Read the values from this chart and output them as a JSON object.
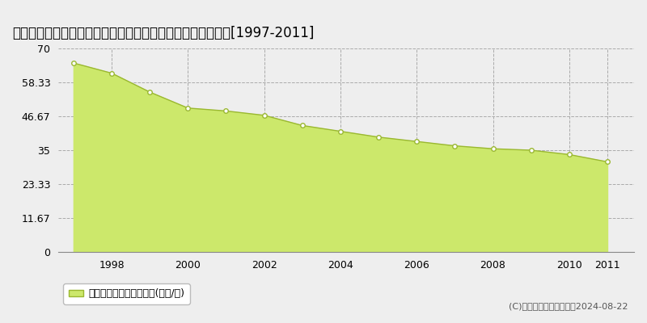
{
  "title": "香川県高松市多賀町３丁目１０番６　基準地価格　地価推移[1997-2011]",
  "data_years": [
    1997,
    1998,
    1999,
    2000,
    2001,
    2002,
    2003,
    2004,
    2005,
    2006,
    2007,
    2008,
    2009,
    2010,
    2011
  ],
  "data_values": [
    65.0,
    61.5,
    55.0,
    49.5,
    48.5,
    47.0,
    43.5,
    41.5,
    39.5,
    38.0,
    36.5,
    35.5,
    35.0,
    33.5,
    31.0
  ],
  "ylim": [
    0,
    70
  ],
  "yticks": [
    0,
    11.67,
    23.33,
    35,
    46.67,
    58.33,
    70
  ],
  "ytick_labels": [
    "0",
    "11.67",
    "23.33",
    "35",
    "46.67",
    "58.33",
    "70"
  ],
  "xticks": [
    1998,
    2000,
    2002,
    2004,
    2006,
    2008,
    2010,
    2011
  ],
  "xlim_left": 1996.6,
  "xlim_right": 2011.7,
  "fill_color": "#cce86b",
  "line_color": "#9ab830",
  "marker_facecolor": "#ffffff",
  "marker_edgecolor": "#9ab830",
  "grid_color": "#aaaaaa",
  "bg_color": "#eeeeee",
  "plot_bg_color": "#eeeeee",
  "spine_color": "#888888",
  "legend_label": "基準地価格　平均坤単価(万円/坤)",
  "copyright_text": "(C)土地価格ドットコム　2024-08-22",
  "title_fontsize": 12,
  "tick_fontsize": 9,
  "legend_fontsize": 9,
  "copyright_fontsize": 8
}
